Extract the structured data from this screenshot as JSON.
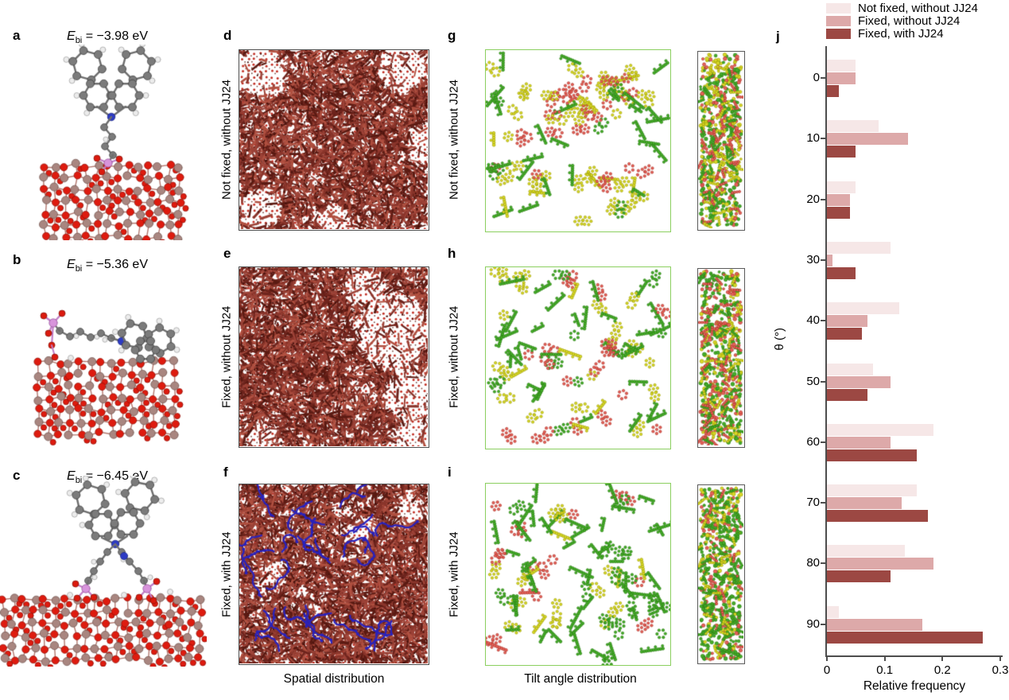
{
  "figure": {
    "panels": {
      "a": {
        "label": "a",
        "ebi_symbol": "E",
        "ebi_sub": "bi",
        "ebi_rest": " = −3.98 eV"
      },
      "b": {
        "label": "b",
        "ebi_symbol": "E",
        "ebi_sub": "bi",
        "ebi_rest": " = −5.36 eV"
      },
      "c": {
        "label": "c",
        "ebi_symbol": "E",
        "ebi_sub": "bi",
        "ebi_rest": " = −6.45 eV"
      },
      "d": {
        "label": "d",
        "side_label": "Not fixed, without JJ24"
      },
      "e": {
        "label": "e",
        "side_label": "Fixed, without JJ24"
      },
      "f": {
        "label": "f",
        "side_label": "Fixed, with JJ24"
      },
      "g": {
        "label": "g",
        "side_label": "Not fixed, without JJ24"
      },
      "h": {
        "label": "h",
        "side_label": "Fixed, without JJ24"
      },
      "i": {
        "label": "i",
        "side_label": "Fixed, with JJ24"
      },
      "j": {
        "label": "j"
      }
    },
    "captions": {
      "spatial": "Spatial distribution",
      "tilt": "Tilt angle distribution"
    }
  },
  "chart_data": {
    "type": "bar",
    "orientation": "horizontal",
    "title": "",
    "xlabel": "Relative frequency",
    "ylabel": "θ (°)",
    "xlim": [
      0,
      0.3
    ],
    "xticks": [
      0,
      0.1,
      0.2,
      0.3
    ],
    "grid": false,
    "legend_position": "top-right",
    "categories": [
      "0",
      "10",
      "20",
      "30",
      "40",
      "50",
      "60",
      "70",
      "80",
      "90"
    ],
    "series": [
      {
        "name": "Not fixed, without JJ24",
        "color": "#f6e7e7",
        "values": [
          0.05,
          0.09,
          0.05,
          0.11,
          0.125,
          0.08,
          0.185,
          0.155,
          0.135,
          0.02
        ]
      },
      {
        "name": "Fixed, without JJ24",
        "color": "#dda9a9",
        "values": [
          0.05,
          0.14,
          0.04,
          0.01,
          0.07,
          0.11,
          0.11,
          0.13,
          0.185,
          0.165
        ]
      },
      {
        "name": "Fixed, with JJ24",
        "color": "#9c4843",
        "values": [
          0.02,
          0.05,
          0.04,
          0.05,
          0.06,
          0.07,
          0.155,
          0.175,
          0.11,
          0.27
        ]
      }
    ]
  }
}
